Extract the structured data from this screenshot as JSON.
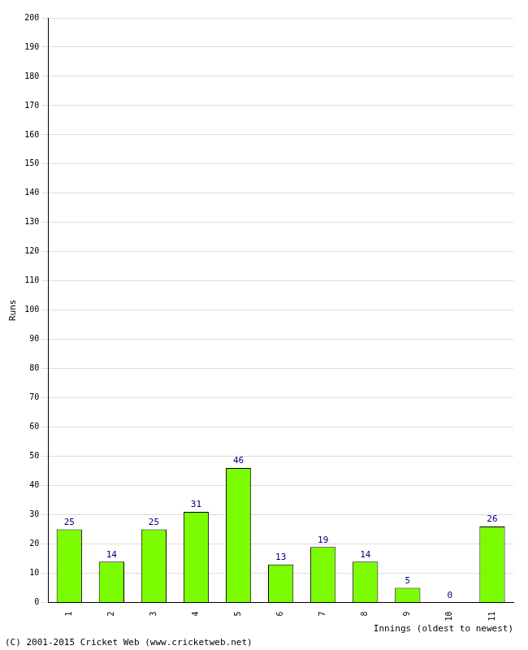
{
  "chart_data": {
    "type": "bar",
    "xlabel": "Innings (oldest to newest)",
    "ylabel": "Runs",
    "annotation": "(C) 2001-2015 Cricket Web (www.cricketweb.net)",
    "categories": [
      "1",
      "2",
      "3",
      "4",
      "5",
      "6",
      "7",
      "8",
      "9",
      "10",
      "11"
    ],
    "values": [
      25,
      14,
      25,
      31,
      46,
      13,
      19,
      14,
      5,
      0,
      26
    ],
    "color": "#7cfc00",
    "ylim": [
      0,
      200
    ],
    "yticks": [
      0,
      10,
      20,
      30,
      40,
      50,
      60,
      70,
      80,
      90,
      100,
      110,
      120,
      130,
      140,
      150,
      160,
      170,
      180,
      190,
      200
    ],
    "grid": true,
    "data_labels": true
  }
}
